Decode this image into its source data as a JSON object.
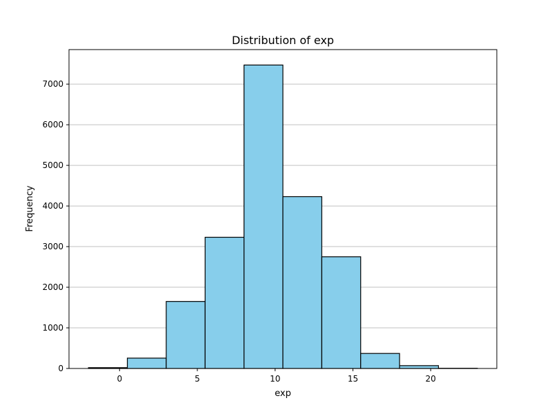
{
  "chart_data": {
    "type": "bar",
    "subtype": "histogram",
    "title": "Distribution of exp",
    "xlabel": "exp",
    "ylabel": "Frequency",
    "xlim": [
      -3.25,
      24.25
    ],
    "ylim": [
      0,
      7850
    ],
    "x_ticks": [
      0,
      5,
      10,
      15,
      20
    ],
    "y_ticks": [
      0,
      1000,
      2000,
      3000,
      4000,
      5000,
      6000,
      7000
    ],
    "grid": {
      "axis": "y",
      "on": true
    },
    "bar_color": "#87ceeb",
    "edge_color": "#000000",
    "grid_color": "#c0c0c0",
    "bins": [
      {
        "x0": -2.0,
        "x1": 0.5,
        "count": 20
      },
      {
        "x0": 0.5,
        "x1": 3.0,
        "count": 255
      },
      {
        "x0": 3.0,
        "x1": 5.5,
        "count": 1650
      },
      {
        "x0": 5.5,
        "x1": 8.0,
        "count": 3230
      },
      {
        "x0": 8.0,
        "x1": 10.5,
        "count": 7470
      },
      {
        "x0": 10.5,
        "x1": 13.0,
        "count": 4230
      },
      {
        "x0": 13.0,
        "x1": 15.5,
        "count": 2750
      },
      {
        "x0": 15.5,
        "x1": 18.0,
        "count": 370
      },
      {
        "x0": 18.0,
        "x1": 20.5,
        "count": 70
      },
      {
        "x0": 20.5,
        "x1": 23.0,
        "count": 5
      }
    ]
  }
}
